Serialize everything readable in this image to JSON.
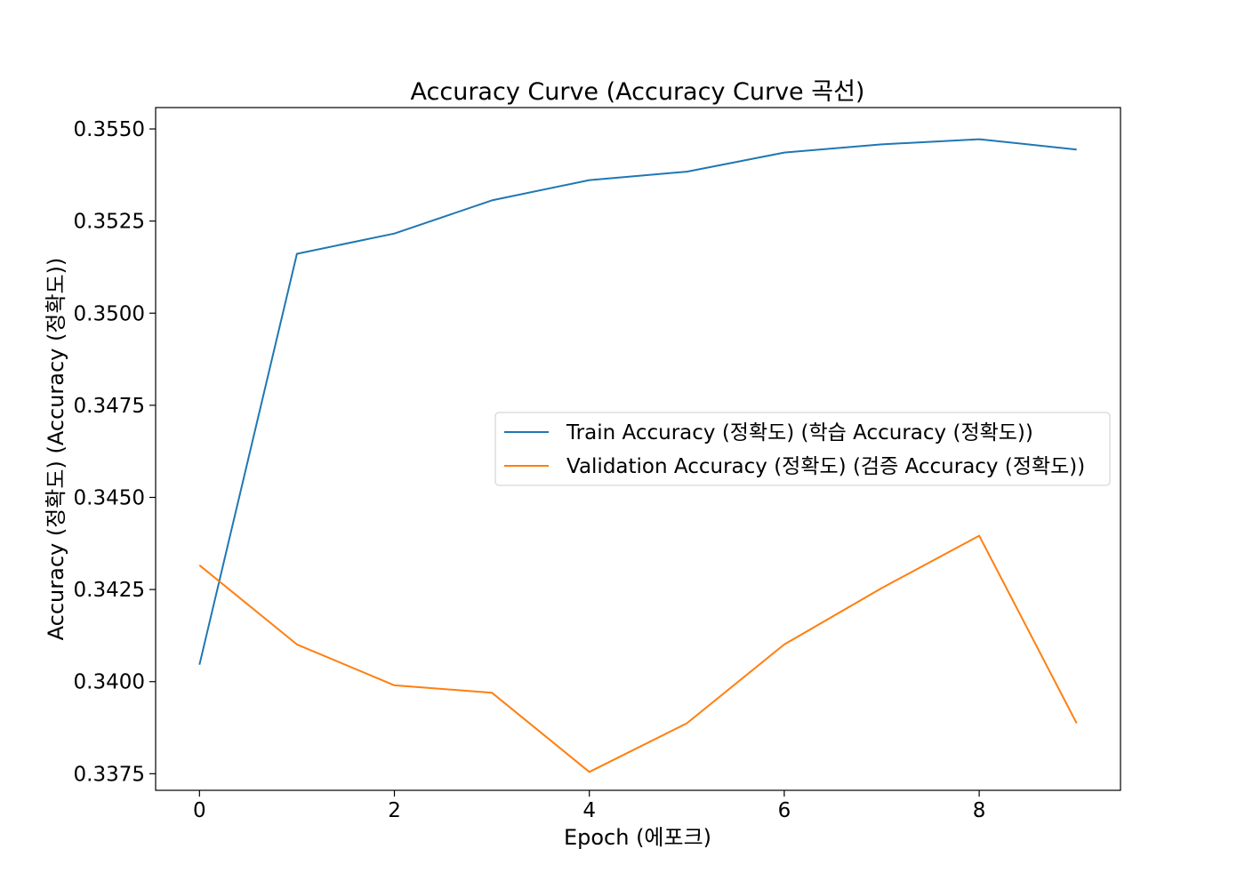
{
  "chart_data": {
    "type": "line",
    "title": "Accuracy Curve (Accuracy Curve 곡선)",
    "xlabel": "Epoch (에포크)",
    "ylabel": "Accuracy (정확도) (Accuracy (정확도))",
    "xlim": [
      -0.45,
      9.45
    ],
    "ylim": [
      0.33705,
      0.35558
    ],
    "xticks": [
      0,
      2,
      4,
      6,
      8
    ],
    "xtick_labels": [
      "0",
      "2",
      "4",
      "6",
      "8"
    ],
    "yticks": [
      0.3375,
      0.34,
      0.3425,
      0.345,
      0.3475,
      0.35,
      0.3525,
      0.355
    ],
    "ytick_labels": [
      "0.3375",
      "0.3400",
      "0.3425",
      "0.3450",
      "0.3475",
      "0.3500",
      "0.3525",
      "0.3550"
    ],
    "grid": false,
    "legend_position": "center-right",
    "x": [
      0,
      1,
      2,
      3,
      4,
      5,
      6,
      7,
      8,
      9
    ],
    "series": [
      {
        "name": "Train Accuracy (정확도) (학습 Accuracy (정확도))",
        "color": "#1f77b4",
        "values": [
          0.34046,
          0.35161,
          0.35216,
          0.35306,
          0.35361,
          0.35384,
          0.35436,
          0.35458,
          0.35472,
          0.35444
        ]
      },
      {
        "name": "Validation Accuracy (정확도) (검증 Accuracy (정확도))",
        "color": "#ff7f0e",
        "values": [
          0.34316,
          0.34101,
          0.3399,
          0.3397,
          0.33755,
          0.33887,
          0.34101,
          0.34254,
          0.34396,
          0.33887
        ]
      }
    ]
  }
}
